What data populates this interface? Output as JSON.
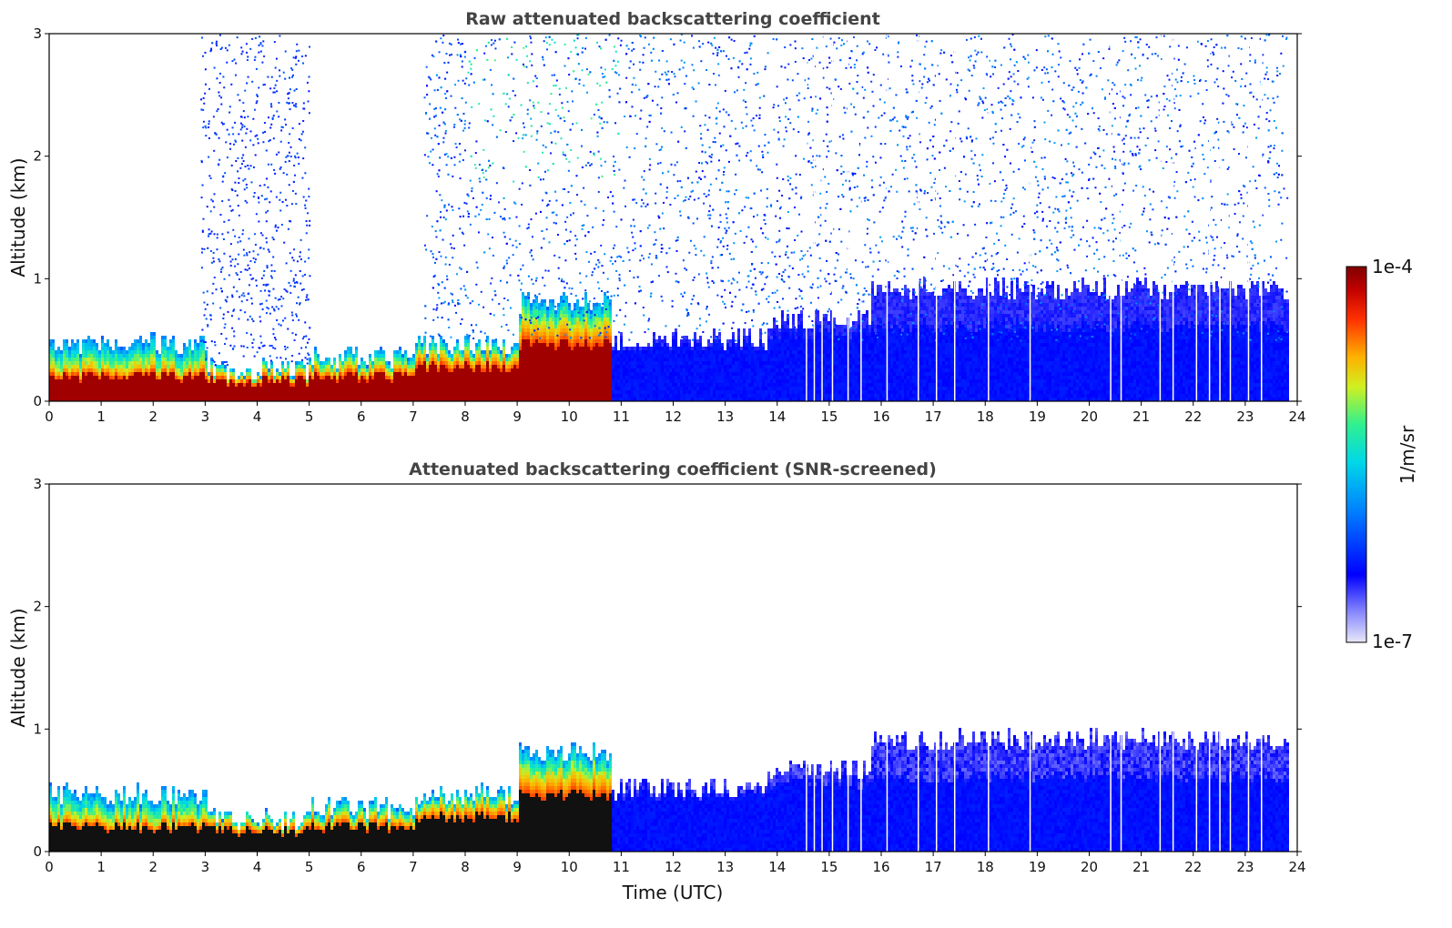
{
  "chart_data": [
    {
      "type": "heatmap",
      "title": "Raw attenuated backscattering coefficient",
      "xlabel": "",
      "ylabel": "Altitude (km)",
      "xlim": [
        0,
        24
      ],
      "ylim": [
        0,
        3
      ],
      "xticks": [
        "0",
        "1",
        "2",
        "3",
        "4",
        "5",
        "6",
        "7",
        "8",
        "9",
        "10",
        "11",
        "12",
        "13",
        "14",
        "15",
        "16",
        "17",
        "18",
        "19",
        "20",
        "21",
        "22",
        "23",
        "24"
      ],
      "yticks": [
        "0",
        "1",
        "2",
        "3"
      ],
      "screened": false,
      "layers": [
        {
          "x0": 0,
          "x1": 3,
          "base_top_km": 0.25,
          "aerosol_top_km": 0.45
        },
        {
          "x0": 3,
          "x1": 5,
          "base_top_km": 0.2,
          "aerosol_top_km": 0.25
        },
        {
          "x0": 5,
          "x1": 7,
          "base_top_km": 0.25,
          "aerosol_top_km": 0.35
        },
        {
          "x0": 7,
          "x1": 9,
          "base_top_km": 0.35,
          "aerosol_top_km": 0.45
        },
        {
          "x0": 9,
          "x1": 10.8,
          "base_top_km": 0.6,
          "aerosol_top_km": 0.8
        },
        {
          "x0": 10.8,
          "x1": 13.8,
          "base_top_km": 0.45,
          "aerosol_top_km": 0.5
        },
        {
          "x0": 13.8,
          "x1": 15.8,
          "base_top_km": 0.55,
          "aerosol_top_km": 0.65
        },
        {
          "x0": 15.8,
          "x1": 23.8,
          "base_top_km": 0.6,
          "aerosol_top_km": 0.9
        }
      ],
      "noise_region": {
        "x0": 7.2,
        "x1": 23.8,
        "y0_km": 0.5,
        "y1_km": 3
      }
    },
    {
      "type": "heatmap",
      "title": "Attenuated backscattering coefficient (SNR-screened)",
      "xlabel": "Time (UTC)",
      "ylabel": "Altitude (km)",
      "xlim": [
        0,
        24
      ],
      "ylim": [
        0,
        3
      ],
      "xticks": [
        "0",
        "1",
        "2",
        "3",
        "4",
        "5",
        "6",
        "7",
        "8",
        "9",
        "10",
        "11",
        "12",
        "13",
        "14",
        "15",
        "16",
        "17",
        "18",
        "19",
        "20",
        "21",
        "22",
        "23",
        "24"
      ],
      "yticks": [
        "0",
        "1",
        "2",
        "3"
      ],
      "screened": true,
      "layers": [
        {
          "x0": 0,
          "x1": 3,
          "base_top_km": 0.25,
          "aerosol_top_km": 0.45
        },
        {
          "x0": 3,
          "x1": 5,
          "base_top_km": 0.2,
          "aerosol_top_km": 0.25
        },
        {
          "x0": 5,
          "x1": 7,
          "base_top_km": 0.25,
          "aerosol_top_km": 0.35
        },
        {
          "x0": 7,
          "x1": 9,
          "base_top_km": 0.35,
          "aerosol_top_km": 0.45
        },
        {
          "x0": 9,
          "x1": 10.8,
          "base_top_km": 0.6,
          "aerosol_top_km": 0.8
        },
        {
          "x0": 10.8,
          "x1": 13.8,
          "base_top_km": 0.45,
          "aerosol_top_km": 0.5
        },
        {
          "x0": 13.8,
          "x1": 15.8,
          "base_top_km": 0.55,
          "aerosol_top_km": 0.65
        },
        {
          "x0": 15.8,
          "x1": 23.8,
          "base_top_km": 0.6,
          "aerosol_top_km": 0.9
        }
      ]
    }
  ],
  "colorbar": {
    "max_label": "1e-4",
    "min_label": "1e-7",
    "unit_label": "1/m/sr",
    "colormap": "jet",
    "stops": [
      "#e8e8f8",
      "#0000ff",
      "#00ccff",
      "#00ff88",
      "#ffff00",
      "#ff6600",
      "#cc0000",
      "#800000"
    ]
  }
}
